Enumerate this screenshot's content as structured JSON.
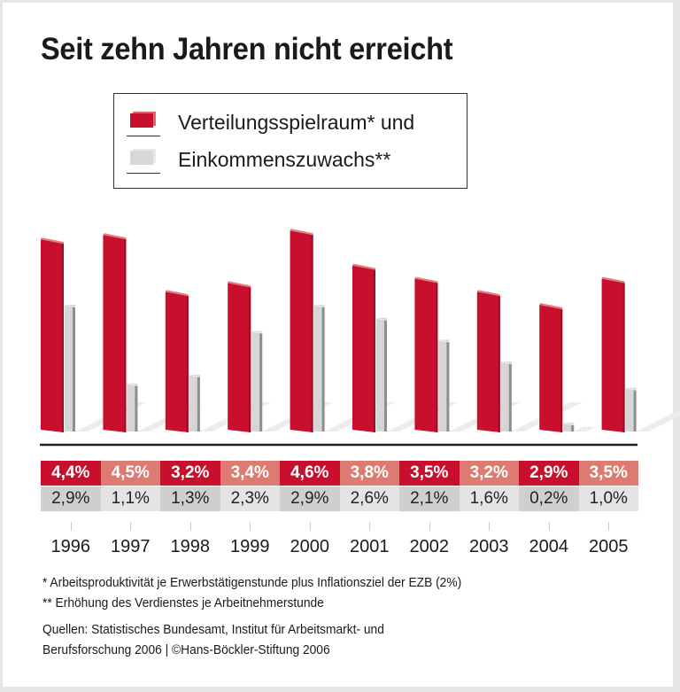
{
  "title": "Seit zehn Jahren nicht erreicht",
  "legend": {
    "items": [
      {
        "label": "Verteilungsspielraum* und",
        "color": "#c8102e"
      },
      {
        "label": "Einkommenszuwachs**",
        "color": "#d4d4d4"
      }
    ]
  },
  "colors": {
    "red": "#c8102e",
    "red_light": "#dd7a72",
    "gray": "#d4d4d4",
    "gray_dark": "#cfcfcf",
    "gray_light": "#e4e4e4"
  },
  "chart_data": {
    "type": "bar",
    "title": "Seit zehn Jahren nicht erreicht",
    "xlabel": "",
    "ylabel": "",
    "ylim": [
      0,
      4.6
    ],
    "grid": false,
    "legend_position": "top-center",
    "categories": [
      "1996",
      "1997",
      "1998",
      "1999",
      "2000",
      "2001",
      "2002",
      "2003",
      "2004",
      "2005"
    ],
    "series": [
      {
        "name": "Verteilungsspielraum*",
        "values": [
          4.4,
          4.5,
          3.2,
          3.4,
          4.6,
          3.8,
          3.5,
          3.2,
          2.9,
          3.5
        ]
      },
      {
        "name": "Einkommenszuwachs**",
        "values": [
          2.9,
          1.1,
          1.3,
          2.3,
          2.9,
          2.6,
          2.1,
          1.6,
          0.2,
          1.0
        ]
      }
    ],
    "data_labels": {
      "Verteilungsspielraum*": [
        "4,4%",
        "4,5%",
        "3,2%",
        "3,4%",
        "4,6%",
        "3,8%",
        "3,5%",
        "3,2%",
        "2,9%",
        "3,5%"
      ],
      "Einkommenszuwachs**": [
        "2,9%",
        "1,1%",
        "1,3%",
        "2,3%",
        "2,9%",
        "2,6%",
        "2,1%",
        "1,6%",
        "0,2%",
        "1,0%"
      ]
    }
  },
  "footnotes": [
    "*   Arbeitsproduktivität je Erwerbstätigenstunde plus Inflationsziel der EZB (2%)",
    "** Erhöhung des Verdienstes je Arbeitnehmerstunde"
  ],
  "source": [
    "Quellen: Statistisches Bundesamt, Institut für Arbeitsmarkt- und",
    "Berufsforschung 2006 | ©Hans-Böckler-Stiftung 2006"
  ]
}
